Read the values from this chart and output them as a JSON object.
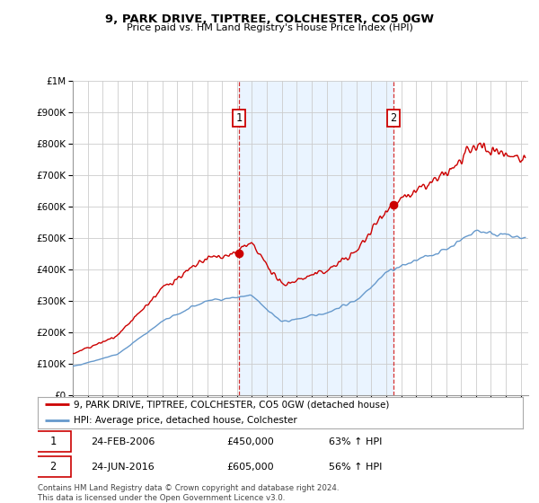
{
  "title": "9, PARK DRIVE, TIPTREE, COLCHESTER, CO5 0GW",
  "subtitle": "Price paid vs. HM Land Registry's House Price Index (HPI)",
  "red_label": "9, PARK DRIVE, TIPTREE, COLCHESTER, CO5 0GW (detached house)",
  "blue_label": "HPI: Average price, detached house, Colchester",
  "annotation1": {
    "num": "1",
    "date": "24-FEB-2006",
    "price": "£450,000",
    "pct": "63% ↑ HPI"
  },
  "annotation2": {
    "num": "2",
    "date": "24-JUN-2016",
    "price": "£605,000",
    "pct": "56% ↑ HPI"
  },
  "footer": "Contains HM Land Registry data © Crown copyright and database right 2024.\nThis data is licensed under the Open Government Licence v3.0.",
  "vline1_x": 2006.15,
  "vline2_x": 2016.48,
  "ylim": [
    0,
    1000000
  ],
  "xlim": [
    1995.0,
    2025.5
  ],
  "background_color": "#ffffff",
  "grid_color": "#cccccc",
  "red_color": "#cc0000",
  "blue_color": "#6699cc",
  "shade_color": "#ddeeff"
}
